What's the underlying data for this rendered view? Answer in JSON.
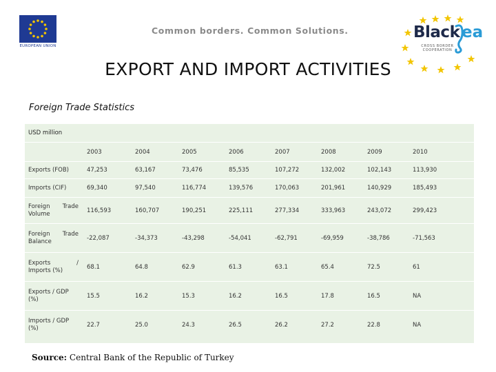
{
  "header": {
    "eu_caption": "EUROPEAN UNION",
    "tagline": "Common borders. Common Solutions.",
    "blacksea_word1": "Black",
    "blacksea_word2": "ea",
    "blacksea_sub1": "CROSS BORDER",
    "blacksea_sub2": "COOPERATION"
  },
  "title": "EXPORT AND IMPORT ACTIVITIES",
  "subtitle": "Foreign Trade Statistics",
  "table": {
    "unit": "USD million",
    "years": [
      "2003",
      "2004",
      "2005",
      "2006",
      "2007",
      "2008",
      "2009",
      "2010"
    ],
    "rows": [
      {
        "label1": "Exports (FOB)",
        "label2": "",
        "label3": "",
        "values": [
          "47,253",
          "63,167",
          "73,476",
          "85,535",
          "107,272",
          "132,002",
          "102,143",
          "113,930"
        ]
      },
      {
        "label1": "Imports (CIF)",
        "label2": "",
        "label3": "",
        "values": [
          "69,340",
          "97,540",
          "116,774",
          "139,576",
          "170,063",
          "201,961",
          "140,929",
          "185,493"
        ]
      },
      {
        "label1": "Foreign",
        "label2": "Trade",
        "label3": "Volume",
        "values": [
          "116,593",
          "160,707",
          "190,251",
          "225,111",
          "277,334",
          "333,963",
          "243,072",
          "299,423"
        ]
      },
      {
        "label1": "Foreign",
        "label2": "Trade",
        "label3": "Balance",
        "values": [
          "-22,087",
          "-34,373",
          "-43,298",
          "-54,041",
          "-62,791",
          "-69,959",
          "-38,786",
          "-71,563"
        ]
      },
      {
        "label1": "Exports",
        "label2": "/",
        "label3": "Imports (%)",
        "values": [
          "68.1",
          "64.8",
          "62.9",
          "61.3",
          "63.1",
          "65.4",
          "72.5",
          "61"
        ]
      },
      {
        "label1": "Exports / GDP",
        "label2": "",
        "label3": "(%)",
        "values": [
          "15.5",
          "16.2",
          "15.3",
          "16.2",
          "16.5",
          "17.8",
          "16.5",
          "NA"
        ]
      },
      {
        "label1": "Imports / GDP",
        "label2": "",
        "label3": "(%)",
        "values": [
          "22.7",
          "25.0",
          "24.3",
          "26.5",
          "26.2",
          "27.2",
          "22.8",
          "NA"
        ]
      }
    ]
  },
  "source": {
    "prefix": "Source:",
    "text": " Central Bank of the Republic of Turkey"
  },
  "colors": {
    "table_bg": "#e9f2e5",
    "eu_blue": "#1f3a93",
    "star_yellow": "#f2c500",
    "sea_blue": "#2a9bd6"
  }
}
